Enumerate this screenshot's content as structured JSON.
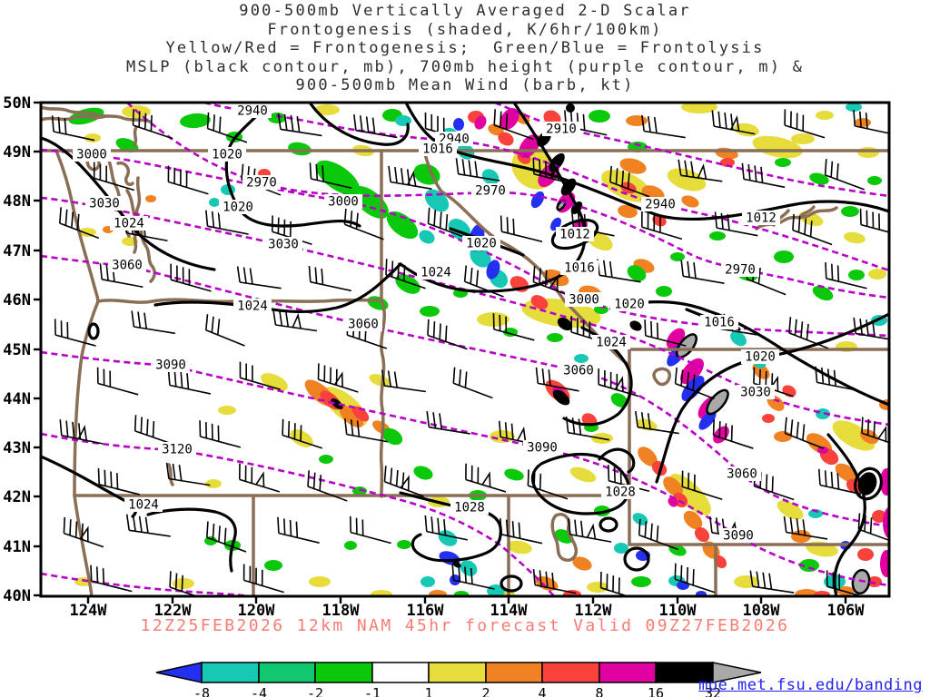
{
  "title": {
    "line1": "900-500mb Vertically Averaged 2-D Scalar",
    "line2": "Frontogenesis (shaded, K/6hr/100km)",
    "line3": "Yellow/Red = Frontogenesis;  Green/Blue = Frontolysis",
    "line4": "MSLP (black contour, mb), 700mb height (purple contour, m) &",
    "line5": "900-500mb Mean Wind (barb, kt)"
  },
  "footer": {
    "valid_line": "12Z25FEB2026 12km NAM 45hr forecast Valid 09Z27FEB2026",
    "color": "#F97C74"
  },
  "credit": {
    "link": "moe.met.fsu.edu/banding",
    "color": "#2222EE"
  },
  "map": {
    "lat_labels": [
      "50N",
      "49N",
      "48N",
      "47N",
      "46N",
      "45N",
      "44N",
      "43N",
      "42N",
      "41N",
      "40N"
    ],
    "lon_labels": [
      "124W",
      "122W",
      "120W",
      "118W",
      "116W",
      "114W",
      "112W",
      "110W",
      "108W",
      "106W"
    ],
    "colors": {
      "mslp_contour": "#000000",
      "height_700mb_contour": "#B800C8",
      "state_borders": "#8A6E55",
      "wind_barbs": "#000000"
    },
    "contour_labels": {
      "height_700mb": [
        {
          "text": "2940"
        },
        {
          "text": "2910"
        },
        {
          "text": "2940"
        },
        {
          "text": "3000"
        },
        {
          "text": "2970"
        },
        {
          "text": "2970"
        },
        {
          "text": "3000"
        },
        {
          "text": "2940"
        },
        {
          "text": "3030"
        },
        {
          "text": "3030"
        },
        {
          "text": "3060"
        },
        {
          "text": "2970"
        },
        {
          "text": "3000"
        },
        {
          "text": "3060"
        },
        {
          "text": "3060"
        },
        {
          "text": "3090"
        },
        {
          "text": "3030"
        },
        {
          "text": "3090"
        },
        {
          "text": "3120"
        },
        {
          "text": "3060"
        },
        {
          "text": "3090"
        }
      ],
      "mslp": [
        {
          "text": "1020"
        },
        {
          "text": "1016"
        },
        {
          "text": "1024"
        },
        {
          "text": "1020"
        },
        {
          "text": "1012"
        },
        {
          "text": "1020"
        },
        {
          "text": "1016"
        },
        {
          "text": "1024"
        },
        {
          "text": "1020"
        },
        {
          "text": "1024"
        },
        {
          "text": "1016"
        },
        {
          "text": "1024"
        },
        {
          "text": "1020"
        },
        {
          "text": "1012"
        },
        {
          "text": "1028"
        },
        {
          "text": "1028"
        },
        {
          "text": "1024"
        }
      ]
    }
  },
  "colorbar": {
    "ticks": [
      "-8",
      "-4",
      "-2",
      "-1",
      "1",
      "2",
      "4",
      "8",
      "16",
      "32"
    ],
    "segment_colors": [
      "#2330F0",
      "#17C8B4",
      "#12C86E",
      "#0AC80A",
      "#FFFFFF",
      "#E6DC3C",
      "#F08223",
      "#FA423C",
      "#E100A0",
      "#000000",
      "#A9A9A9"
    ]
  }
}
